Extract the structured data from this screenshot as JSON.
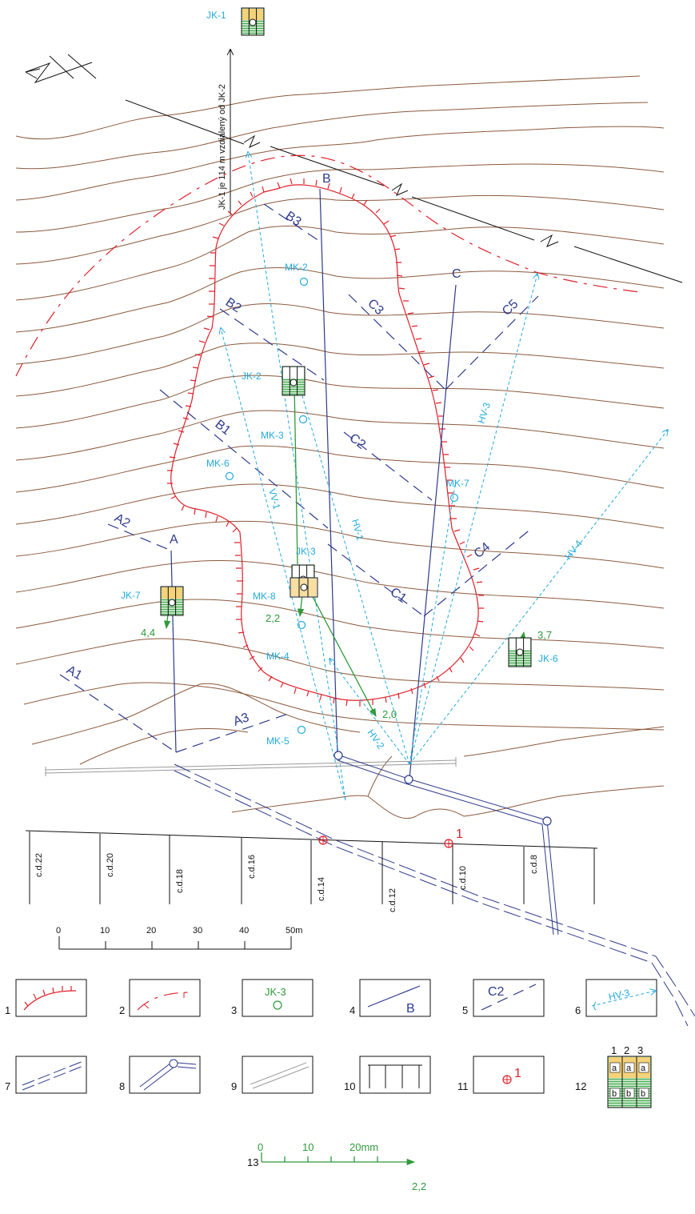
{
  "colors": {
    "contour": "#8B5A3C",
    "profile": "#2E3A8C",
    "drain": "#22AADD",
    "landslide": "#E0202A",
    "green": "#2E9A3A"
  },
  "boreholes": [
    {
      "id": "jk1",
      "label": "JK-1"
    },
    {
      "id": "jk2",
      "label": "JK-2"
    },
    {
      "id": "jk3",
      "label": "JK-3"
    },
    {
      "id": "jk6",
      "label": "JK-6"
    },
    {
      "id": "jk7",
      "label": "JK-7"
    }
  ],
  "jk1_note": "JK-1 je 114 m vzdialený od JK-2",
  "monitoring": [
    {
      "id": "mk2",
      "label": "MK-2"
    },
    {
      "id": "mk3",
      "label": "MK-3"
    },
    {
      "id": "mk4",
      "label": "MK-4"
    },
    {
      "id": "mk5",
      "label": "MK-5"
    },
    {
      "id": "mk6",
      "label": "MK-6"
    },
    {
      "id": "mk7",
      "label": "MK-7"
    },
    {
      "id": "mk8",
      "label": "MK-8"
    }
  ],
  "profiles": {
    "main": [
      "A",
      "B",
      "C"
    ],
    "cross": [
      "A1",
      "A2",
      "A3",
      "B1",
      "B2",
      "B3",
      "C1",
      "C2",
      "C3",
      "C4",
      "C5"
    ]
  },
  "drains": [
    "HV-1",
    "HV-2",
    "HV-3",
    "HV-4",
    "VV-1"
  ],
  "vectors": [
    {
      "id": "v1",
      "value": "2,2"
    },
    {
      "id": "v2",
      "value": "2,0"
    },
    {
      "id": "v3",
      "value": "3,7"
    },
    {
      "id": "v4",
      "value": "4,4"
    }
  ],
  "houses": [
    "c.d.22",
    "c.d.20",
    "c.d.18",
    "c.d.16",
    "c.d.14",
    "c.d.12",
    "c.d.10",
    "c.d.8"
  ],
  "damage_points": [
    {
      "id": "d1",
      "label": "1"
    }
  ],
  "scale_bar": {
    "ticks": [
      "0",
      "10",
      "20",
      "30",
      "40",
      "50m"
    ]
  },
  "legend": {
    "items": [
      {
        "num": "1",
        "sample": ""
      },
      {
        "num": "2",
        "sample": ""
      },
      {
        "num": "3",
        "sample": "JK-3"
      },
      {
        "num": "4",
        "sample": "B"
      },
      {
        "num": "5",
        "sample": "C2"
      },
      {
        "num": "6",
        "sample": "HV-3"
      },
      {
        "num": "7",
        "sample": ""
      },
      {
        "num": "8",
        "sample": ""
      },
      {
        "num": "9",
        "sample": ""
      },
      {
        "num": "10",
        "sample": ""
      },
      {
        "num": "11",
        "sample": "1"
      },
      {
        "num": "12",
        "sample": ""
      }
    ],
    "item12_cols": [
      "1",
      "2",
      "3"
    ],
    "item12_a": "a",
    "item12_b": "b"
  },
  "vector_scale": {
    "num": "13",
    "ticks": [
      "0",
      "10",
      "20mm"
    ],
    "example": "2,2"
  }
}
